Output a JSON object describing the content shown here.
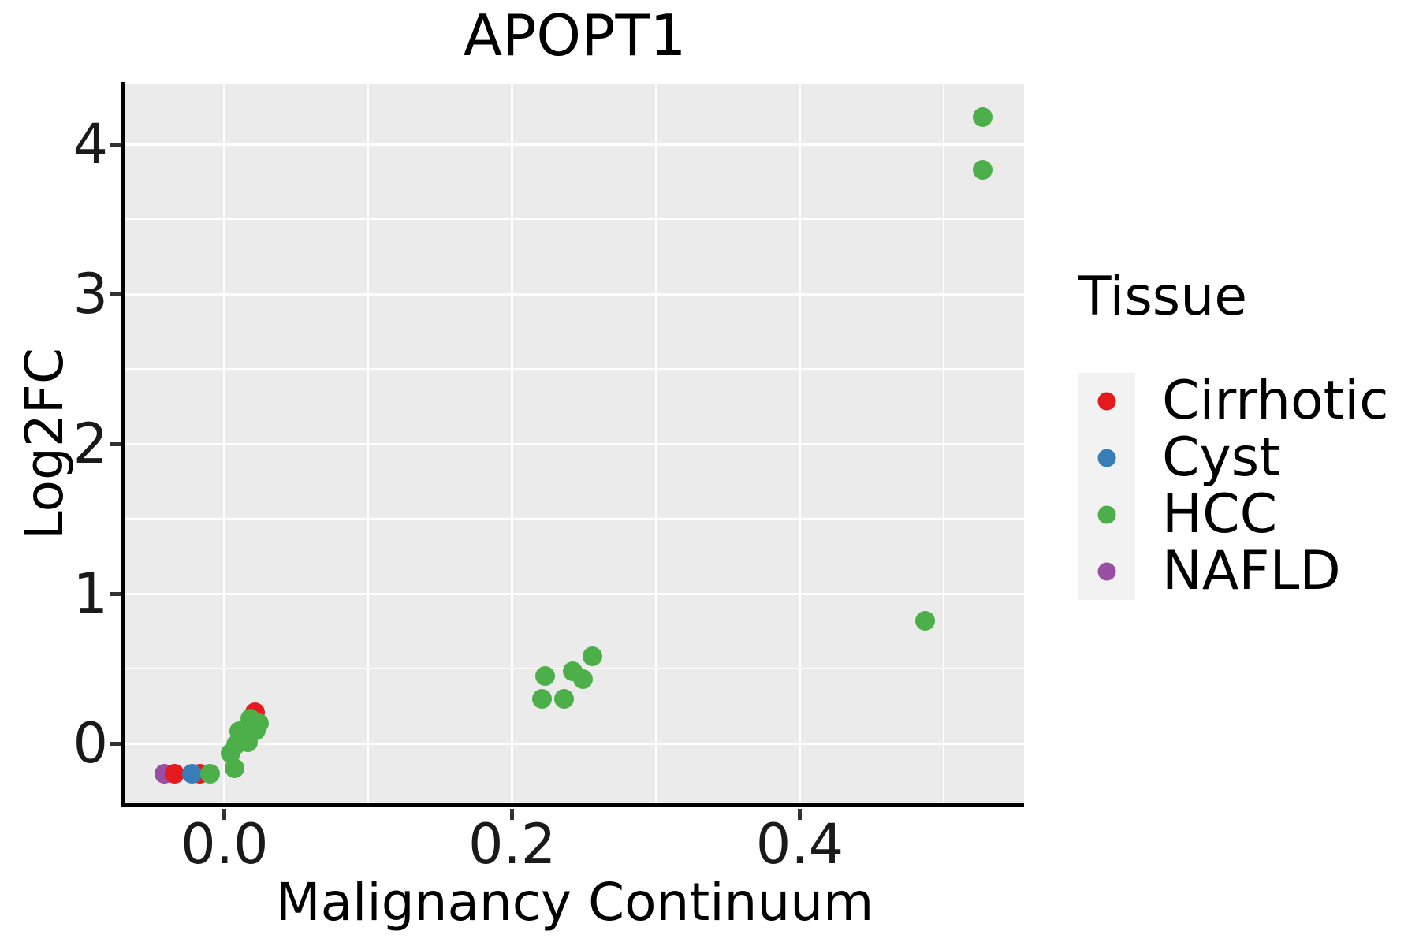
{
  "title": "APOPT1",
  "legend": {
    "title": "Tissue",
    "entries": [
      {
        "label": "Cirrhotic",
        "color": "#e41a1c"
      },
      {
        "label": "Cyst",
        "color": "#377eb8"
      },
      {
        "label": "HCC",
        "color": "#4daf4a"
      },
      {
        "label": "NAFLD",
        "color": "#984ea3"
      }
    ]
  },
  "palette": {
    "Cirrhotic": "#e41a1c",
    "Cyst": "#377eb8",
    "HCC": "#4daf4a",
    "NAFLD": "#984ea3",
    "panel_background": "#ebebeb",
    "gridline": "#ffffff",
    "legend_key_background": "#f2f2f2"
  },
  "chart_data": {
    "type": "scatter",
    "title": "APOPT1",
    "xlabel": "Malignancy Continuum",
    "ylabel": "Log2FC",
    "xlim": [
      -0.069,
      0.556
    ],
    "ylim": [
      -0.405,
      4.4
    ],
    "x_ticks": [
      0.0,
      0.2,
      0.4
    ],
    "x_tick_labels": [
      "0.0",
      "0.2",
      "0.4"
    ],
    "x_minor_ticks": [
      0.1,
      0.3,
      0.5
    ],
    "y_ticks": [
      0,
      1,
      2,
      3,
      4
    ],
    "y_tick_labels": [
      "0",
      "1",
      "2",
      "3",
      "4"
    ],
    "y_minor_ticks": [
      0.5,
      1.5,
      2.5,
      3.5
    ],
    "grid": true,
    "legend_position": "right",
    "legend_title": "Tissue",
    "series": [
      {
        "name": "NAFLD",
        "color": "#984ea3",
        "points": [
          [
            -0.042,
            -0.2
          ]
        ]
      },
      {
        "name": "Cirrhotic",
        "color": "#e41a1c",
        "points": [
          [
            -0.035,
            -0.2
          ],
          [
            -0.017,
            -0.2
          ],
          [
            0.021,
            0.21
          ]
        ]
      },
      {
        "name": "Cyst",
        "color": "#377eb8",
        "points": [
          [
            -0.0225,
            -0.205
          ]
        ]
      },
      {
        "name": "HCC",
        "color": "#4daf4a",
        "points": [
          [
            -0.01,
            -0.2
          ],
          [
            0.007,
            -0.165
          ],
          [
            0.004,
            -0.065
          ],
          [
            0.008,
            -0.01
          ],
          [
            0.016,
            0.01
          ],
          [
            0.01,
            0.08
          ],
          [
            0.022,
            0.085
          ],
          [
            0.024,
            0.135
          ],
          [
            0.018,
            0.165
          ],
          [
            0.223,
            0.45
          ],
          [
            0.221,
            0.3
          ],
          [
            0.236,
            0.3
          ],
          [
            0.242,
            0.48
          ],
          [
            0.249,
            0.43
          ],
          [
            0.256,
            0.58
          ],
          [
            0.487,
            0.82
          ],
          [
            0.527,
            4.18
          ],
          [
            0.527,
            3.83
          ]
        ]
      }
    ]
  }
}
